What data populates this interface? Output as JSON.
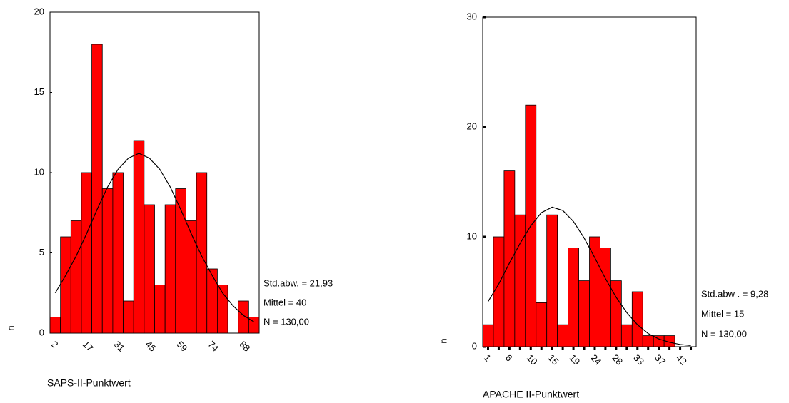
{
  "chart_data": [
    {
      "type": "bar",
      "color": "#ff0000",
      "categories": [
        "2",
        null,
        null,
        "17",
        null,
        null,
        "31",
        null,
        null,
        "45",
        null,
        null,
        "59",
        null,
        null,
        "74",
        null,
        null,
        "88",
        null
      ],
      "values": [
        1,
        6,
        7,
        10,
        18,
        9,
        10,
        2,
        12,
        8,
        3,
        8,
        9,
        7,
        10,
        4,
        3,
        0,
        2,
        1
      ],
      "curve": [
        2.5,
        3.6,
        4.8,
        6.2,
        7.7,
        9.1,
        10.2,
        10.9,
        11.2,
        10.9,
        10.2,
        9.1,
        7.7,
        6.2,
        4.8,
        3.6,
        2.5,
        1.7,
        1.1,
        0.7
      ],
      "ylim": [
        0,
        20
      ],
      "yticks": [
        0,
        5,
        10,
        15,
        20
      ],
      "x_label": "SAPS-II-Punktwert",
      "y_label": "n",
      "annotations": [
        "Std.abw. = 21,93",
        "Mittel = 40",
        "N = 130,00"
      ]
    },
    {
      "type": "bar",
      "color": "#ff0000",
      "categories": [
        "1",
        null,
        "6",
        null,
        "10",
        null,
        "15",
        null,
        "19",
        null,
        "24",
        null,
        "28",
        null,
        "33",
        null,
        "37",
        null,
        "42",
        null
      ],
      "values": [
        2,
        10,
        16,
        12,
        22,
        4,
        12,
        2,
        9,
        6,
        10,
        9,
        6,
        2,
        5,
        1,
        1,
        1,
        0,
        0
      ],
      "curve": [
        4.1,
        5.7,
        7.6,
        9.4,
        11.0,
        12.2,
        12.7,
        12.4,
        11.4,
        9.9,
        8.1,
        6.2,
        4.5,
        3.1,
        2.0,
        1.2,
        0.7,
        0.4,
        0.2,
        0.1
      ],
      "ylim": [
        0,
        30
      ],
      "yticks": [
        0,
        10,
        20,
        30
      ],
      "x_label": "APACHE II-Punktwert",
      "y_label": "n",
      "annotations": [
        "Std.abw . = 9,28",
        "Mittel = 15",
        "N = 130,00"
      ]
    }
  ]
}
